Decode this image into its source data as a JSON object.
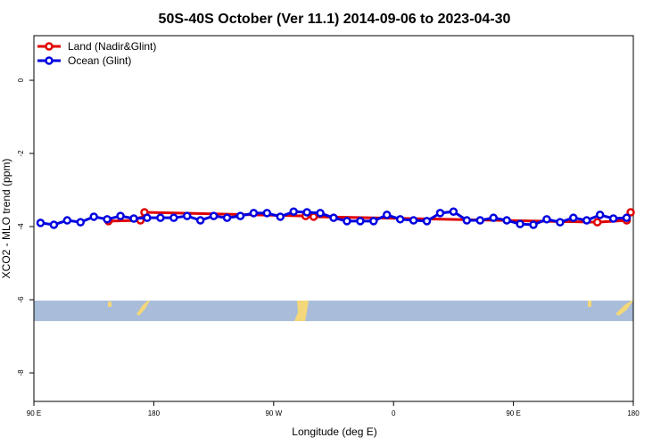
{
  "chart_data": {
    "type": "line",
    "title": "50S-40S October (Ver 11.1)   2014-09-06 to 2023-04-30",
    "x_label": "Longitude (deg E)",
    "y_label": "XCO2 - MLO trend (ppm)",
    "xlim": [
      90,
      540
    ],
    "ylim": [
      -8.78,
      1.22
    ],
    "xticks": [
      {
        "value": 90,
        "label": "90 E"
      },
      180,
      {
        "value": 270,
        "label": "90 W"
      },
      {
        "value": 360,
        "label": "0"
      },
      {
        "value": 450,
        "label": "90 E"
      },
      {
        "value": 540,
        "label": "180"
      }
    ],
    "yticks": [
      0,
      -2,
      -4,
      -6,
      -8
    ],
    "legend": "top-left",
    "series": [
      {
        "name": "Land (Nadir&Glint)",
        "color": "#e00000",
        "x": [
          146,
          170,
          173,
          294,
          300,
          513,
          535,
          538
        ],
        "values": [
          -3.85,
          -3.83,
          -3.61,
          -3.71,
          -3.73,
          -3.88,
          -3.83,
          -3.61
        ]
      },
      {
        "name": "Ocean (Glint)",
        "color": "#0000e0",
        "x": [
          95,
          105,
          115,
          125,
          135,
          145,
          155,
          165,
          175,
          185,
          195,
          205,
          215,
          225,
          235,
          245,
          255,
          265,
          275,
          285,
          295,
          305,
          315,
          325,
          335,
          345,
          355,
          365,
          375,
          385,
          395,
          405,
          415,
          425,
          435,
          445,
          455,
          465,
          475,
          485,
          495,
          505,
          515,
          525,
          535
        ],
        "values": [
          -3.9,
          -3.95,
          -3.83,
          -3.88,
          -3.73,
          -3.8,
          -3.71,
          -3.78,
          -3.76,
          -3.76,
          -3.76,
          -3.71,
          -3.83,
          -3.71,
          -3.76,
          -3.71,
          -3.63,
          -3.63,
          -3.73,
          -3.59,
          -3.61,
          -3.63,
          -3.76,
          -3.85,
          -3.85,
          -3.85,
          -3.68,
          -3.8,
          -3.83,
          -3.85,
          -3.63,
          -3.59,
          -3.83,
          -3.83,
          -3.76,
          -3.83,
          -3.93,
          -3.95,
          -3.8,
          -3.88,
          -3.76,
          -3.83,
          -3.68,
          -3.78,
          -3.76
        ]
      }
    ]
  }
}
